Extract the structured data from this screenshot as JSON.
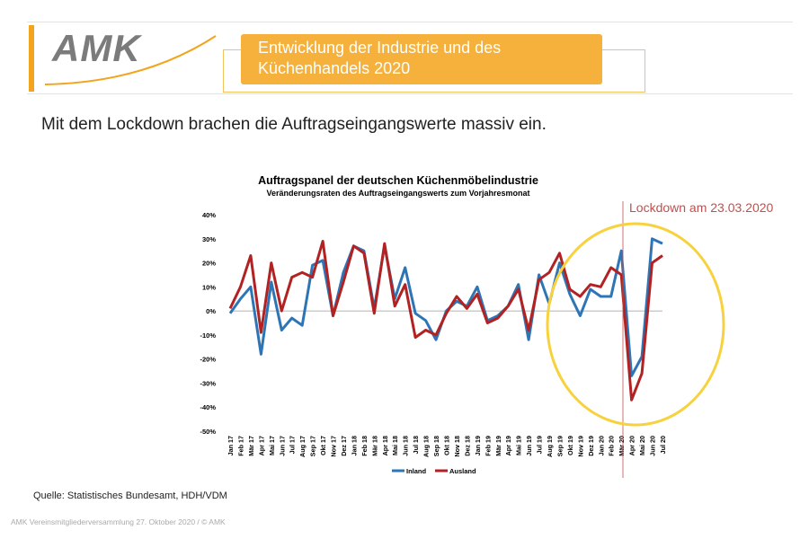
{
  "header": {
    "logo": "AMK",
    "title_line1": "Entwicklung der Industrie und des",
    "title_line2": "Küchenhandels 2020"
  },
  "subtitle": "Mit dem Lockdown brachen die Auftragseingangswerte massiv ein.",
  "source": "Quelle: Statistisches Bundesamt, HDH/VDM",
  "footer": "AMK Vereinsmitgliederversammlung 27. Oktober 2020 / © AMK",
  "colors": {
    "orange": "#f5b13b",
    "inland": "#2e75b6",
    "ausland": "#b22222",
    "highlight": "#f7d23e"
  },
  "chart_data": {
    "type": "line",
    "title": "Auftragspanel der deutschen Küchenmöbelindustrie",
    "subtitle": "Veränderungsraten des Auftragseingangswerts zum Vorjahresmonat",
    "ylim": [
      -50,
      40
    ],
    "yticks": [
      "40%",
      "30%",
      "20%",
      "10%",
      "0%",
      "-10%",
      "-20%",
      "-30%",
      "-40%",
      "-50%"
    ],
    "grid": false,
    "legend": "bottom",
    "annotation": "Lockdown am 23.03.2020",
    "categories": [
      "Jan 17",
      "Feb 17",
      "Mär 17",
      "Apr 17",
      "Mai 17",
      "Jun 17",
      "Jul 17",
      "Aug 17",
      "Sep 17",
      "Okt 17",
      "Nov 17",
      "Dez 17",
      "Jan 18",
      "Feb 18",
      "Mär 18",
      "Apr 18",
      "Mai 18",
      "Jun 18",
      "Jul 18",
      "Aug 18",
      "Sep 18",
      "Okt 18",
      "Nov 18",
      "Dez 18",
      "Jan 19",
      "Feb 19",
      "Mär 19",
      "Apr 19",
      "Mai 19",
      "Jun 19",
      "Jul 19",
      "Aug 19",
      "Sep 19",
      "Okt 19",
      "Nov 19",
      "Dez 19",
      "Jan 20",
      "Feb 20",
      "Mär 20",
      "Apr 20",
      "Mai 20",
      "Jun 20",
      "Jul 20"
    ],
    "series": [
      {
        "name": "Inland",
        "values": [
          -1,
          5,
          10,
          -18,
          12,
          -8,
          -3,
          -6,
          19,
          21,
          -2,
          16,
          27,
          25,
          1,
          27,
          5,
          18,
          -1,
          -4,
          -12,
          0,
          4,
          2,
          10,
          -4,
          -2,
          2,
          11,
          -12,
          15,
          3,
          20,
          7,
          -2,
          9,
          6,
          6,
          25,
          -27,
          -19,
          30,
          28
        ]
      },
      {
        "name": "Ausland",
        "values": [
          1,
          10,
          23,
          -9,
          20,
          0,
          14,
          16,
          14,
          29,
          -2,
          12,
          27,
          24,
          -1,
          28,
          2,
          11,
          -11,
          -8,
          -10,
          -1,
          6,
          1,
          7,
          -5,
          -3,
          2,
          9,
          -8,
          13,
          16,
          24,
          9,
          6,
          11,
          10,
          18,
          15,
          -37,
          -26,
          20,
          23
        ]
      }
    ]
  }
}
